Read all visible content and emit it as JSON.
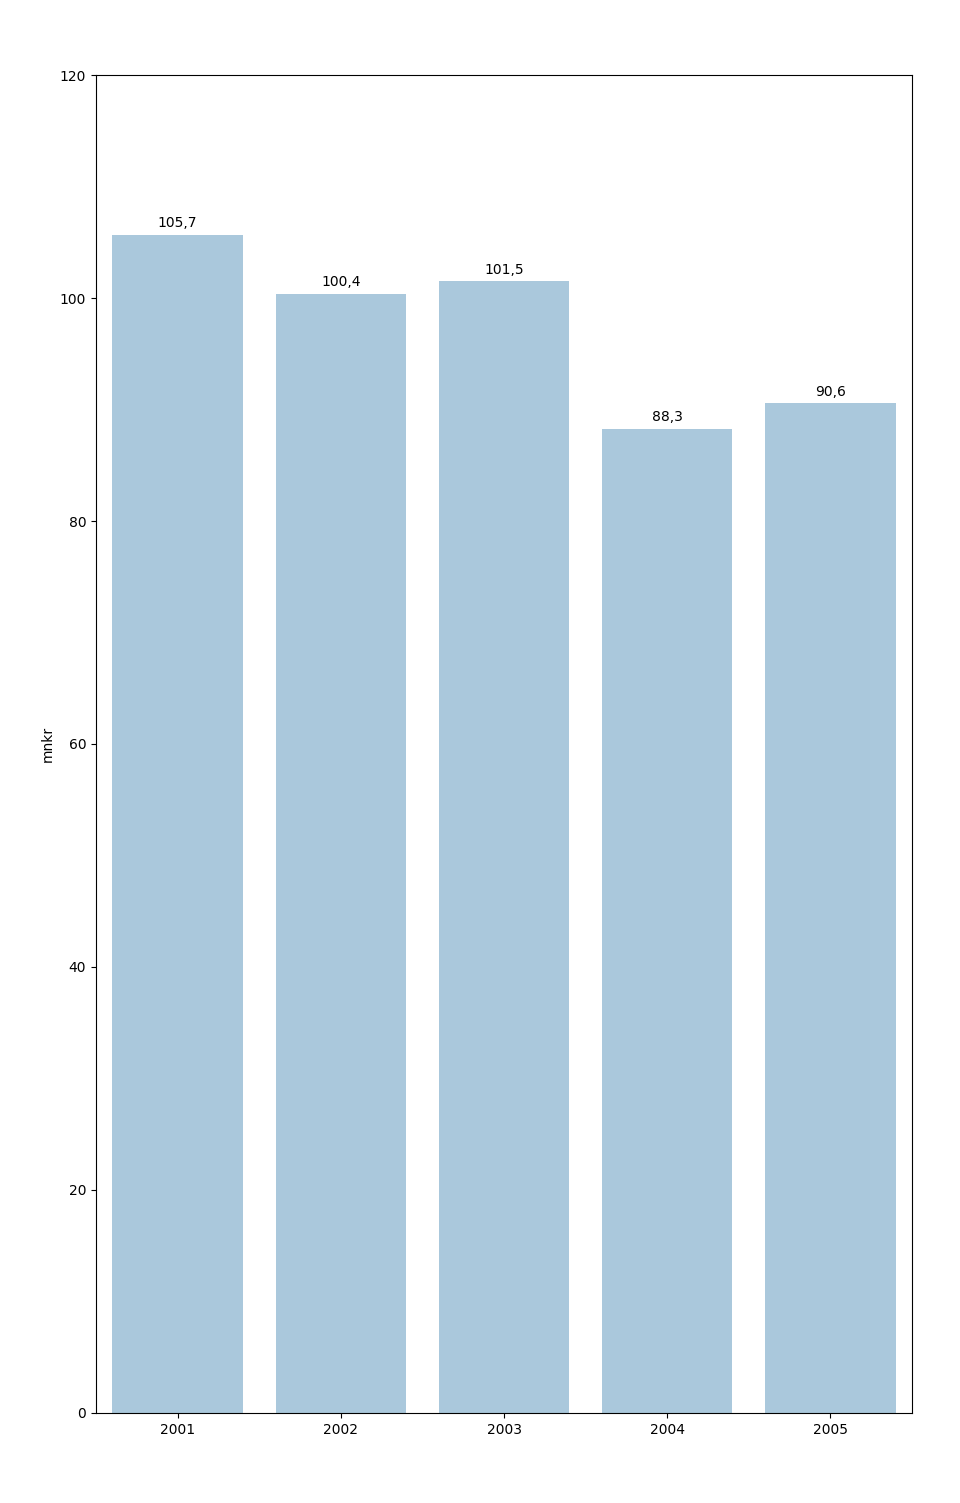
{
  "chart_data": {
    "type": "bar",
    "categories": [
      "2001",
      "2002",
      "2003",
      "2004",
      "2005"
    ],
    "values": [
      105.7,
      100.4,
      101.5,
      88.3,
      90.6
    ],
    "value_labels": [
      "105,7",
      "100,4",
      "101,5",
      "88,3",
      "90,6"
    ],
    "color": "#aac8dc",
    "ylabel": "mnkr",
    "ylim": [
      0,
      120
    ],
    "yticks": [
      0,
      20,
      40,
      60,
      80,
      100,
      120
    ],
    "data_labels": true,
    "grid": false
  }
}
